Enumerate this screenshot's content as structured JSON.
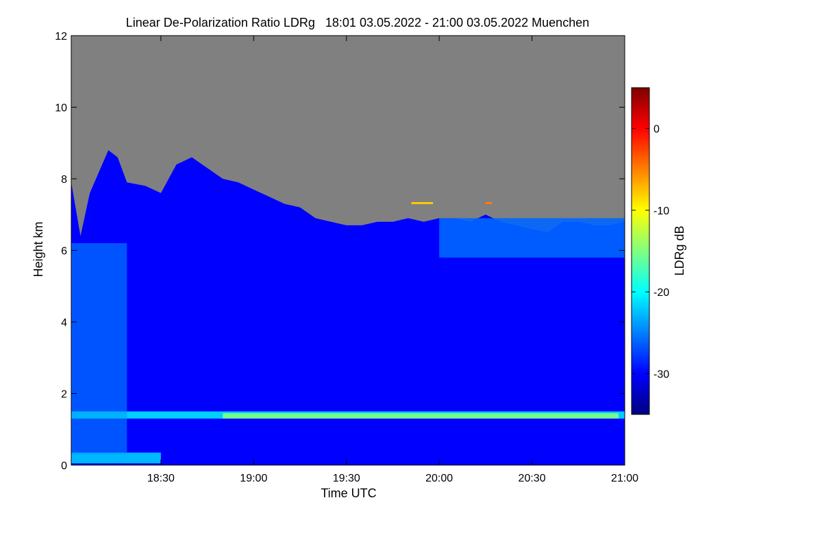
{
  "chart_data": {
    "type": "heatmap",
    "title": "Linear De-Polarization Ratio LDRg   18:01 03.05.2022 - 21:00 03.05.2022 Muenchen",
    "xlabel": "Time UTC",
    "ylabel": "Height km",
    "x_range_minutes_utc": [
      1081,
      1260
    ],
    "x_ticks": [
      {
        "minutes": 1110,
        "label": "18:30"
      },
      {
        "minutes": 1140,
        "label": "19:00"
      },
      {
        "minutes": 1170,
        "label": "19:30"
      },
      {
        "minutes": 1200,
        "label": "20:00"
      },
      {
        "minutes": 1230,
        "label": "20:30"
      },
      {
        "minutes": 1260,
        "label": "21:00"
      }
    ],
    "ylim": [
      0,
      12
    ],
    "y_ticks": [
      0,
      2,
      4,
      6,
      8,
      10,
      12
    ],
    "colorbar": {
      "label": "LDRg dB",
      "range": [
        -35,
        5
      ],
      "ticks": [
        0,
        -10,
        -20,
        -30
      ],
      "colors": [
        "#00007f",
        "#0000ff",
        "#0080ff",
        "#00ffff",
        "#80ff80",
        "#ffff00",
        "#ff8000",
        "#ff0000",
        "#7f0000"
      ]
    },
    "no_signal_color": "#808080",
    "background_ldr_db": -30,
    "signal_top_km": [
      {
        "t": 1081,
        "h": 7.9
      },
      {
        "t": 1084,
        "h": 6.4
      },
      {
        "t": 1087,
        "h": 7.6
      },
      {
        "t": 1090,
        "h": 8.2
      },
      {
        "t": 1093,
        "h": 8.8
      },
      {
        "t": 1096,
        "h": 8.6
      },
      {
        "t": 1099,
        "h": 7.9
      },
      {
        "t": 1105,
        "h": 7.8
      },
      {
        "t": 1110,
        "h": 7.6
      },
      {
        "t": 1115,
        "h": 8.4
      },
      {
        "t": 1120,
        "h": 8.6
      },
      {
        "t": 1125,
        "h": 8.3
      },
      {
        "t": 1130,
        "h": 8.0
      },
      {
        "t": 1135,
        "h": 7.9
      },
      {
        "t": 1140,
        "h": 7.7
      },
      {
        "t": 1145,
        "h": 7.5
      },
      {
        "t": 1150,
        "h": 7.3
      },
      {
        "t": 1155,
        "h": 7.2
      },
      {
        "t": 1160,
        "h": 6.9
      },
      {
        "t": 1165,
        "h": 6.8
      },
      {
        "t": 1170,
        "h": 6.7
      },
      {
        "t": 1175,
        "h": 6.7
      },
      {
        "t": 1180,
        "h": 6.8
      },
      {
        "t": 1185,
        "h": 6.8
      },
      {
        "t": 1190,
        "h": 6.9
      },
      {
        "t": 1195,
        "h": 6.8
      },
      {
        "t": 1200,
        "h": 6.9
      },
      {
        "t": 1205,
        "h": 6.9
      },
      {
        "t": 1210,
        "h": 6.8
      },
      {
        "t": 1215,
        "h": 7.0
      },
      {
        "t": 1220,
        "h": 6.8
      },
      {
        "t": 1225,
        "h": 6.7
      },
      {
        "t": 1230,
        "h": 6.6
      },
      {
        "t": 1235,
        "h": 6.5
      },
      {
        "t": 1240,
        "h": 6.8
      },
      {
        "t": 1245,
        "h": 6.8
      },
      {
        "t": 1250,
        "h": 6.7
      },
      {
        "t": 1255,
        "h": 6.7
      },
      {
        "t": 1260,
        "h": 6.8
      }
    ],
    "layers": [
      {
        "name": "boundary-layer-top",
        "t_start": 1081,
        "t_end": 1260,
        "height_km": [
          1.3,
          1.5
        ],
        "ldr_db": -21
      },
      {
        "name": "boundary-layer-core",
        "t_start": 1130,
        "t_end": 1258,
        "height_km": [
          1.3,
          1.45
        ],
        "ldr_db": -15
      },
      {
        "name": "near-surface",
        "t_start": 1081,
        "t_end": 1110,
        "height_km": [
          0.05,
          0.35
        ],
        "ldr_db": -22
      },
      {
        "name": "fall-streaks",
        "t_start": 1081,
        "t_end": 1099,
        "height_km": [
          0.3,
          6.2
        ],
        "ldr_db": -24
      },
      {
        "name": "upper-cloud-edge",
        "t_start": 1200,
        "t_end": 1260,
        "height_km": [
          5.8,
          6.9
        ],
        "ldr_db": -26
      }
    ],
    "annotations": [
      {
        "t_start": 1191,
        "t_end": 1198,
        "height_km": 7.32,
        "ldr_db": -8,
        "label": ""
      },
      {
        "t_start": 1215,
        "t_end": 1217,
        "height_km": 7.32,
        "ldr_db": -5,
        "label": ""
      }
    ]
  }
}
